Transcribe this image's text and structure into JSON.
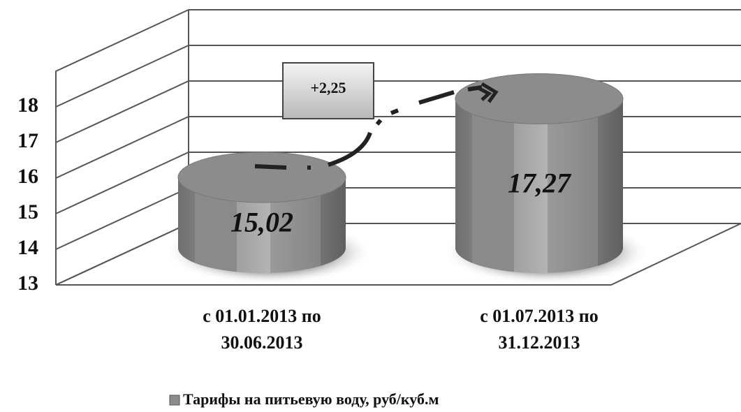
{
  "chart_data": {
    "type": "bar3d",
    "categories": [
      "с 01.01.2013 по\n30.06.2013",
      "с 01.07.2013 по\n31.12.2013"
    ],
    "series": [
      {
        "name": "Тарифы на питьевую воду, руб/куб.м",
        "color": "#8c8c8c",
        "values": [
          15.02,
          17.27
        ],
        "value_labels": [
          "15,02",
          "17,27"
        ]
      }
    ],
    "annotation": "+2,25",
    "ylim": [
      13,
      19
    ],
    "yticks": [
      13,
      14,
      15,
      16,
      17,
      18
    ],
    "grid": true,
    "legend": "bottom"
  }
}
